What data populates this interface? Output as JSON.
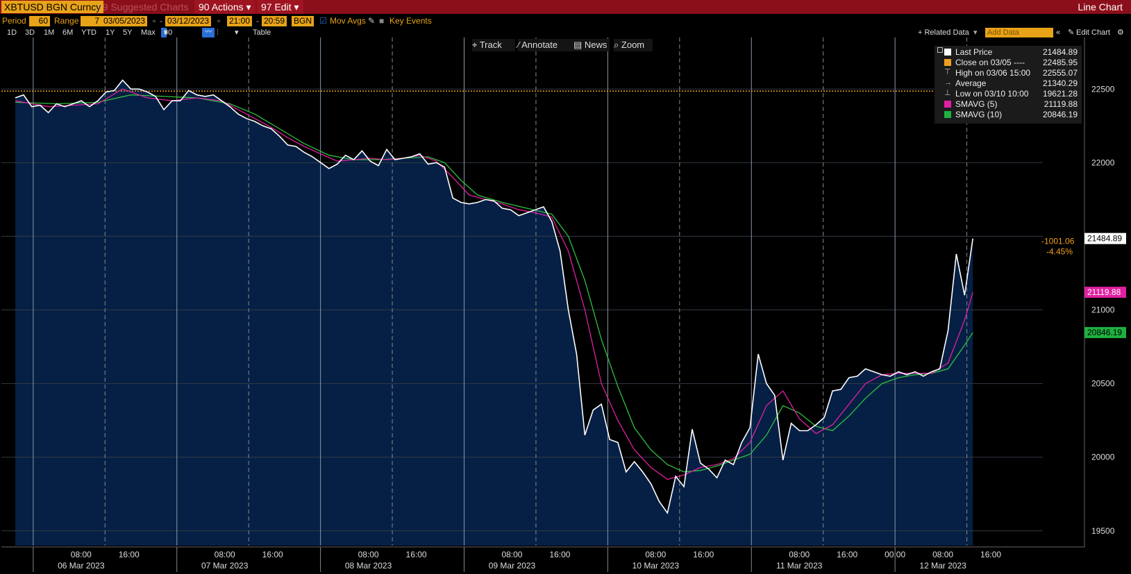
{
  "header": {
    "ticker": "XBTUSD BGN Curncy",
    "suggested": "99 Suggested Charts",
    "actions": "90 Actions",
    "edit": "97 Edit",
    "chart_type": "Line Chart"
  },
  "controls": {
    "period_label": "Period",
    "period_value": "60",
    "range_label": "Range",
    "range_value": "7",
    "start_date": "03/05/2023",
    "end_date": "03/12/2023",
    "start_time": "21:00",
    "end_time": "20:59",
    "source": "BGN",
    "mov_avgs": "Mov Avgs",
    "key_events": "Key Events"
  },
  "ranges": [
    "1D",
    "3D",
    "1M",
    "6M",
    "YTD",
    "1Y",
    "5Y",
    "Max"
  ],
  "interval": "60 Min",
  "table_label": "Table",
  "related_data": "+ Related Data",
  "add_data_placeholder": "Add Data",
  "edit_chart": "Edit Chart",
  "tools": {
    "track": "Track",
    "annotate": "Annotate",
    "news": "News",
    "zoom": "Zoom"
  },
  "legend": [
    {
      "label": "Last Price",
      "value": "21484.89",
      "color": "#ffffff"
    },
    {
      "label": "Close on 03/05 ----",
      "value": "22485.95",
      "color": "#f0a020"
    },
    {
      "label": "High on 03/06 15:00",
      "value": "22555.07",
      "color": "#bbbbbb"
    },
    {
      "label": "Average",
      "value": "21340.29",
      "color": "#bbbbbb"
    },
    {
      "label": "Low on 03/10 10:00",
      "value": "19621.28",
      "color": "#bbbbbb"
    },
    {
      "label": "SMAVG (5)",
      "value": "21119.88",
      "color": "#e020a0"
    },
    {
      "label": "SMAVG (10)",
      "value": "20846.19",
      "color": "#20b040"
    }
  ],
  "change": {
    "abs": "-1001.06",
    "pct": "-4.45%"
  },
  "colors": {
    "area": "#062045",
    "price": "#ffffff",
    "sma5": "#e020a0",
    "sma10": "#30c040",
    "close_line": "#f0a020"
  },
  "chart_data": {
    "type": "area",
    "ylim": [
      19400,
      22850
    ],
    "yticks": [
      19500,
      20000,
      20500,
      21000,
      21500,
      22000,
      22500
    ],
    "reference_close": 22485.95,
    "last_labels": [
      {
        "text": "21484.89",
        "value": 21484.89,
        "bg": "#ffffff",
        "fg": "#000000"
      },
      {
        "text": "21119.88",
        "value": 21119.88,
        "bg": "#e020a0",
        "fg": "#ffffff"
      },
      {
        "text": "20846.19",
        "value": 20846.19,
        "bg": "#20b040",
        "fg": "#000000"
      }
    ],
    "x_hour_labels": [
      {
        "t": 11,
        "text": "08:00"
      },
      {
        "t": 19,
        "text": "16:00"
      },
      {
        "t": 35,
        "text": "08:00"
      },
      {
        "t": 43,
        "text": "16:00"
      },
      {
        "t": 59,
        "text": "08:00"
      },
      {
        "t": 67,
        "text": "16:00"
      },
      {
        "t": 83,
        "text": "08:00"
      },
      {
        "t": 91,
        "text": "16:00"
      },
      {
        "t": 107,
        "text": "08:00"
      },
      {
        "t": 115,
        "text": "16:00"
      },
      {
        "t": 131,
        "text": "08:00"
      },
      {
        "t": 139,
        "text": "16:00"
      },
      {
        "t": 147,
        "text": "00:00"
      },
      {
        "t": 155,
        "text": "08:00"
      },
      {
        "t": 163,
        "text": "16:00"
      }
    ],
    "x_day_labels": [
      {
        "t": 11,
        "text": "06 Mar 2023"
      },
      {
        "t": 35,
        "text": "07 Mar 2023"
      },
      {
        "t": 59,
        "text": "08 Mar 2023"
      },
      {
        "t": 83,
        "text": "09 Mar 2023"
      },
      {
        "t": 107,
        "text": "10 Mar 2023"
      },
      {
        "t": 131,
        "text": "11 Mar 2023"
      },
      {
        "t": 155,
        "text": "12 Mar 2023"
      }
    ],
    "day_boundaries": [
      3,
      27,
      51,
      75,
      99,
      123,
      147
    ],
    "series": [
      {
        "name": "Last Price",
        "points": [
          [
            0,
            22440
          ],
          [
            2,
            22460
          ],
          [
            4,
            22380
          ],
          [
            6,
            22390
          ],
          [
            8,
            22340
          ],
          [
            10,
            22400
          ],
          [
            12,
            22380
          ],
          [
            14,
            22400
          ],
          [
            16,
            22420
          ],
          [
            18,
            22380
          ],
          [
            20,
            22420
          ],
          [
            22,
            22480
          ],
          [
            24,
            22490
          ],
          [
            26,
            22560
          ],
          [
            28,
            22500
          ],
          [
            30,
            22500
          ],
          [
            32,
            22480
          ],
          [
            34,
            22450
          ],
          [
            36,
            22360
          ],
          [
            38,
            22420
          ],
          [
            40,
            22420
          ],
          [
            42,
            22490
          ],
          [
            44,
            22460
          ],
          [
            46,
            22450
          ],
          [
            48,
            22460
          ],
          [
            50,
            22420
          ],
          [
            52,
            22380
          ],
          [
            54,
            22330
          ],
          [
            56,
            22300
          ],
          [
            58,
            22280
          ],
          [
            60,
            22250
          ],
          [
            62,
            22230
          ],
          [
            64,
            22180
          ],
          [
            66,
            22120
          ],
          [
            68,
            22110
          ],
          [
            70,
            22070
          ],
          [
            72,
            22040
          ],
          [
            74,
            22000
          ],
          [
            76,
            21960
          ],
          [
            78,
            21990
          ],
          [
            80,
            22050
          ],
          [
            82,
            22020
          ],
          [
            84,
            22080
          ],
          [
            86,
            22010
          ],
          [
            88,
            21980
          ],
          [
            90,
            22090
          ],
          [
            92,
            22020
          ],
          [
            94,
            22030
          ],
          [
            96,
            22040
          ],
          [
            98,
            22060
          ],
          [
            100,
            21990
          ],
          [
            102,
            22000
          ],
          [
            104,
            21970
          ],
          [
            106,
            21760
          ],
          [
            108,
            21730
          ],
          [
            110,
            21720
          ],
          [
            112,
            21730
          ],
          [
            114,
            21750
          ],
          [
            116,
            21740
          ],
          [
            118,
            21690
          ],
          [
            120,
            21680
          ],
          [
            122,
            21640
          ],
          [
            124,
            21660
          ],
          [
            126,
            21680
          ],
          [
            128,
            21700
          ],
          [
            130,
            21600
          ],
          [
            132,
            21400
          ],
          [
            134,
            21000
          ],
          [
            136,
            20700
          ],
          [
            138,
            20150
          ],
          [
            140,
            20320
          ],
          [
            142,
            20360
          ],
          [
            144,
            20120
          ],
          [
            146,
            20100
          ],
          [
            148,
            19900
          ],
          [
            150,
            19970
          ],
          [
            152,
            19900
          ],
          [
            154,
            19820
          ],
          [
            156,
            19700
          ],
          [
            158,
            19621
          ],
          [
            160,
            19870
          ],
          [
            162,
            19800
          ],
          [
            164,
            20190
          ],
          [
            166,
            19960
          ],
          [
            168,
            19920
          ],
          [
            170,
            19860
          ],
          [
            172,
            19980
          ],
          [
            174,
            19950
          ],
          [
            176,
            20100
          ],
          [
            178,
            20200
          ],
          [
            180,
            20700
          ],
          [
            182,
            20500
          ],
          [
            184,
            20420
          ],
          [
            186,
            19980
          ],
          [
            188,
            20230
          ],
          [
            190,
            20180
          ],
          [
            192,
            20180
          ],
          [
            194,
            20220
          ],
          [
            196,
            20270
          ],
          [
            198,
            20450
          ],
          [
            200,
            20460
          ],
          [
            202,
            20540
          ],
          [
            204,
            20550
          ],
          [
            206,
            20600
          ],
          [
            208,
            20580
          ],
          [
            210,
            20560
          ],
          [
            212,
            20550
          ],
          [
            214,
            20580
          ],
          [
            216,
            20560
          ],
          [
            218,
            20580
          ],
          [
            220,
            20550
          ],
          [
            222,
            20580
          ],
          [
            224,
            20600
          ],
          [
            226,
            20860
          ],
          [
            228,
            21380
          ],
          [
            230,
            21100
          ],
          [
            232,
            21484
          ]
        ]
      },
      {
        "name": "SMAVG (5)",
        "points": [
          [
            0,
            22420
          ],
          [
            8,
            22380
          ],
          [
            14,
            22390
          ],
          [
            20,
            22400
          ],
          [
            26,
            22500
          ],
          [
            32,
            22440
          ],
          [
            38,
            22420
          ],
          [
            44,
            22440
          ],
          [
            50,
            22420
          ],
          [
            56,
            22330
          ],
          [
            62,
            22240
          ],
          [
            66,
            22170
          ],
          [
            70,
            22110
          ],
          [
            74,
            22060
          ],
          [
            78,
            22010
          ],
          [
            82,
            22020
          ],
          [
            86,
            22030
          ],
          [
            90,
            22020
          ],
          [
            94,
            22030
          ],
          [
            98,
            22050
          ],
          [
            102,
            22010
          ],
          [
            106,
            21900
          ],
          [
            110,
            21780
          ],
          [
            114,
            21750
          ],
          [
            118,
            21720
          ],
          [
            122,
            21680
          ],
          [
            126,
            21660
          ],
          [
            130,
            21630
          ],
          [
            134,
            21400
          ],
          [
            138,
            21000
          ],
          [
            142,
            20500
          ],
          [
            146,
            20250
          ],
          [
            150,
            20050
          ],
          [
            154,
            19930
          ],
          [
            158,
            19850
          ],
          [
            162,
            19880
          ],
          [
            166,
            19930
          ],
          [
            170,
            19950
          ],
          [
            174,
            19990
          ],
          [
            178,
            20100
          ],
          [
            182,
            20350
          ],
          [
            186,
            20450
          ],
          [
            190,
            20260
          ],
          [
            194,
            20160
          ],
          [
            198,
            20220
          ],
          [
            202,
            20360
          ],
          [
            206,
            20500
          ],
          [
            210,
            20560
          ],
          [
            214,
            20570
          ],
          [
            218,
            20570
          ],
          [
            222,
            20570
          ],
          [
            226,
            20640
          ],
          [
            230,
            20930
          ],
          [
            232,
            21119
          ]
        ]
      },
      {
        "name": "SMAVG (10)",
        "points": [
          [
            0,
            22410
          ],
          [
            10,
            22400
          ],
          [
            20,
            22410
          ],
          [
            28,
            22460
          ],
          [
            36,
            22450
          ],
          [
            44,
            22440
          ],
          [
            52,
            22400
          ],
          [
            58,
            22330
          ],
          [
            64,
            22230
          ],
          [
            70,
            22130
          ],
          [
            76,
            22050
          ],
          [
            82,
            22020
          ],
          [
            88,
            22020
          ],
          [
            94,
            22030
          ],
          [
            100,
            22040
          ],
          [
            104,
            22000
          ],
          [
            108,
            21880
          ],
          [
            112,
            21780
          ],
          [
            118,
            21730
          ],
          [
            124,
            21690
          ],
          [
            130,
            21650
          ],
          [
            134,
            21500
          ],
          [
            138,
            21200
          ],
          [
            142,
            20800
          ],
          [
            146,
            20480
          ],
          [
            150,
            20200
          ],
          [
            154,
            20050
          ],
          [
            158,
            19950
          ],
          [
            162,
            19900
          ],
          [
            166,
            19910
          ],
          [
            170,
            19940
          ],
          [
            174,
            19980
          ],
          [
            178,
            20020
          ],
          [
            182,
            20150
          ],
          [
            186,
            20350
          ],
          [
            190,
            20300
          ],
          [
            194,
            20210
          ],
          [
            198,
            20180
          ],
          [
            202,
            20280
          ],
          [
            206,
            20400
          ],
          [
            210,
            20500
          ],
          [
            214,
            20540
          ],
          [
            218,
            20560
          ],
          [
            222,
            20570
          ],
          [
            226,
            20600
          ],
          [
            230,
            20760
          ],
          [
            232,
            20846
          ]
        ]
      }
    ]
  }
}
